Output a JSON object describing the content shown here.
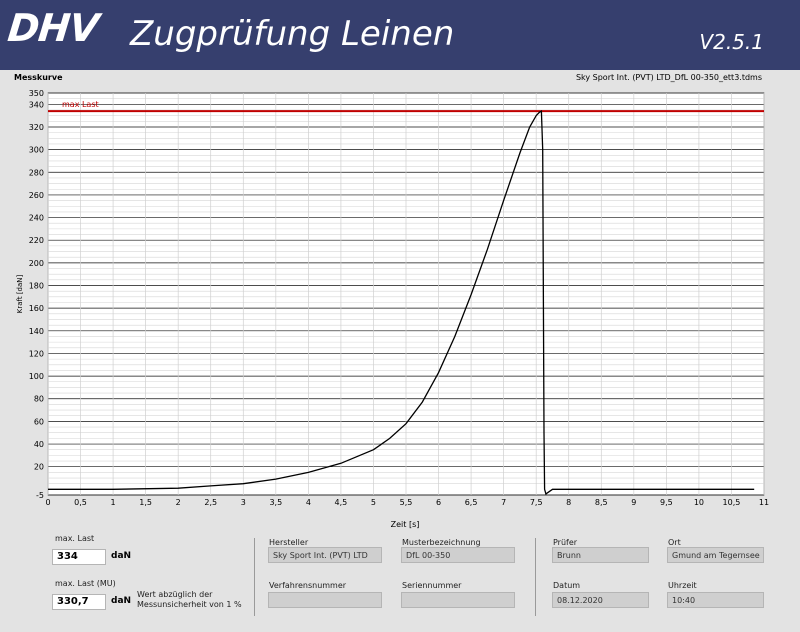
{
  "header": {
    "logo": "DHV",
    "title": "Zugprüfung Leinen",
    "version": "V2.5.1"
  },
  "plot": {
    "title": "Messkurve",
    "file": "Sky Sport Int. (PVT) LTD_DfL 00-350_ett3.tdms"
  },
  "chart_data": {
    "type": "line",
    "xlabel": "Zeit [s]",
    "ylabel": "Kraft [daN]",
    "xlim": [
      0,
      11
    ],
    "ylim": [
      -5,
      350
    ],
    "x_ticks": [
      0,
      0.5,
      1,
      1.5,
      2,
      2.5,
      3,
      3.5,
      4,
      4.5,
      5,
      5.5,
      6,
      6.5,
      7,
      7.5,
      8,
      8.5,
      9,
      9.5,
      10,
      10.5,
      11
    ],
    "x_tick_labels": [
      "0",
      "0,5",
      "1",
      "1,5",
      "2",
      "2,5",
      "3",
      "3,5",
      "4",
      "4,5",
      "5",
      "5,5",
      "6",
      "6,5",
      "7",
      "7,5",
      "8",
      "8,5",
      "9",
      "9,5",
      "10",
      "10,5",
      "11"
    ],
    "y_ticks": [
      -5,
      20,
      40,
      60,
      80,
      100,
      120,
      140,
      160,
      180,
      200,
      220,
      240,
      260,
      280,
      300,
      320,
      340,
      350
    ],
    "y_tick_labels": [
      "-5",
      "20",
      "40",
      "60",
      "80",
      "100",
      "120",
      "140",
      "160",
      "180",
      "200",
      "220",
      "240",
      "260",
      "280",
      "300",
      "320",
      "340",
      "350"
    ],
    "grid": true,
    "series": [
      {
        "color": "#000000",
        "x": [
          0,
          1,
          2,
          2.5,
          3,
          3.5,
          4,
          4.5,
          5,
          5.25,
          5.5,
          5.75,
          6,
          6.25,
          6.5,
          6.75,
          7,
          7.25,
          7.4,
          7.5,
          7.55,
          7.58,
          7.6,
          7.62,
          7.63,
          7.65,
          7.75,
          8,
          9,
          10,
          10.85
        ],
        "y": [
          0,
          0,
          1,
          3,
          5,
          9,
          15,
          23,
          35,
          45,
          58,
          77,
          103,
          135,
          172,
          212,
          255,
          297,
          320,
          330,
          333,
          334,
          300,
          50,
          0,
          -4,
          0,
          0,
          0,
          0,
          0
        ]
      }
    ],
    "reference_line": {
      "label": "max Last",
      "y": 334,
      "color": "#c00000"
    }
  },
  "results": {
    "max_last_label": "max. Last",
    "max_last_value": "334",
    "max_last_unit": "daN",
    "max_last_mu_label": "max. Last (MU)",
    "max_last_mu_value": "330,7",
    "max_last_mu_unit": "daN",
    "mu_note": "Wert abzüglich der Messunsicherheit von 1 %"
  },
  "info": {
    "hersteller_label": "Hersteller",
    "hersteller_value": "Sky Sport Int. (PVT) LTD",
    "musterbezeichnung_label": "Musterbezeichnung",
    "musterbezeichnung_value": "DfL 00-350",
    "pruefer_label": "Prüfer",
    "pruefer_value": "Brunn",
    "ort_label": "Ort",
    "ort_value": "Gmund am Tegernsee",
    "verfahrensnummer_label": "Verfahrensnummer",
    "verfahrensnummer_value": "",
    "seriennummer_label": "Seriennummer",
    "seriennummer_value": "",
    "datum_label": "Datum",
    "datum_value": "08.12.2020",
    "uhrzeit_label": "Uhrzeit",
    "uhrzeit_value": "10:40"
  }
}
